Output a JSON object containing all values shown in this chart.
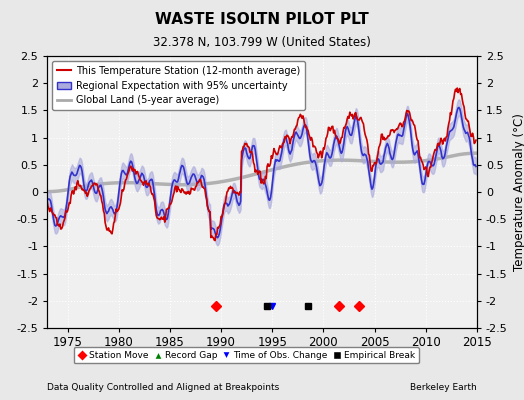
{
  "title": "WASTE ISOLTN PILOT PLT",
  "subtitle": "32.378 N, 103.799 W (United States)",
  "ylabel": "Temperature Anomaly (°C)",
  "footer_left": "Data Quality Controlled and Aligned at Breakpoints",
  "footer_right": "Berkeley Earth",
  "ylim": [
    -2.5,
    2.5
  ],
  "xlim": [
    1973,
    2015
  ],
  "yticks": [
    -2.5,
    -2,
    -1.5,
    -1,
    -0.5,
    0,
    0.5,
    1,
    1.5,
    2,
    2.5
  ],
  "xticks": [
    1975,
    1980,
    1985,
    1990,
    1995,
    2000,
    2005,
    2010,
    2015
  ],
  "bg_color": "#e8e8e8",
  "plot_bg_color": "#f0f0f0",
  "station_color": "#cc0000",
  "regional_color": "#3333cc",
  "regional_fill_color": "#aaaadd",
  "global_color": "#aaaaaa",
  "legend_labels": [
    "This Temperature Station (12-month average)",
    "Regional Expectation with 95% uncertainty",
    "Global Land (5-year average)"
  ],
  "marker_events": {
    "station_move": [
      1989.5,
      2001.5,
      2003.5
    ],
    "record_gap": [],
    "obs_change": [
      1995.0
    ],
    "empirical_break": [
      1994.5,
      1998.5
    ]
  }
}
